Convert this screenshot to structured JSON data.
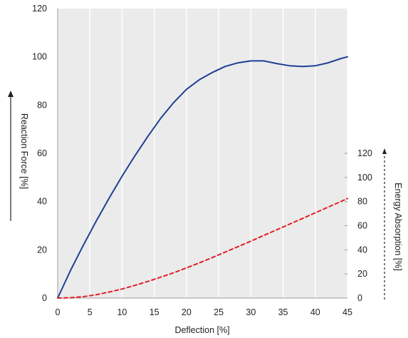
{
  "chart_data": {
    "type": "line",
    "xlabel": "Deflection [%]",
    "ylabel_left": "Reaction Force [%]",
    "ylabel_right": "Energy Absorption [%]",
    "xlim": [
      0,
      45
    ],
    "ylim_left": [
      0,
      120
    ],
    "ylim_right": [
      0,
      120
    ],
    "x_ticks": [
      "0",
      "5",
      "10",
      "15",
      "20",
      "25",
      "30",
      "35",
      "40",
      "45"
    ],
    "y_ticks_left": [
      "0",
      "20",
      "40",
      "60",
      "80",
      "100",
      "120"
    ],
    "y_ticks_right": [
      "0",
      "20",
      "40",
      "60",
      "80",
      "100",
      "120"
    ],
    "grid": "vertical",
    "series": [
      {
        "axis": "left",
        "color": "#1f3f95",
        "style": "solid",
        "x": [
          0,
          2,
          4,
          6,
          8,
          10,
          12,
          14,
          16,
          18,
          20,
          22,
          24,
          26,
          28,
          30,
          32,
          34,
          36,
          38,
          40,
          42,
          44,
          45
        ],
        "y": [
          0,
          11.5,
          22,
          32,
          41.5,
          50.5,
          59,
          67,
          74.5,
          81,
          86.5,
          90.5,
          93.5,
          96,
          97.5,
          98.3,
          98.3,
          97.2,
          96.3,
          96,
          96.3,
          97.5,
          99.3,
          100
        ]
      },
      {
        "axis": "right",
        "color": "#e01e24",
        "style": "dashed",
        "x": [
          0,
          2,
          4,
          6,
          8,
          10,
          12,
          14,
          16,
          18,
          20,
          22,
          24,
          26,
          28,
          30,
          32,
          34,
          36,
          38,
          40,
          42,
          44,
          45
        ],
        "y": [
          0,
          0.3,
          1.2,
          2.8,
          5,
          7.5,
          10.5,
          13.8,
          17.3,
          21,
          25,
          29.2,
          33.6,
          38.1,
          42.6,
          47.2,
          51.9,
          56.6,
          61.3,
          66,
          70.7,
          75.4,
          80.1,
          82.5
        ]
      }
    ]
  }
}
